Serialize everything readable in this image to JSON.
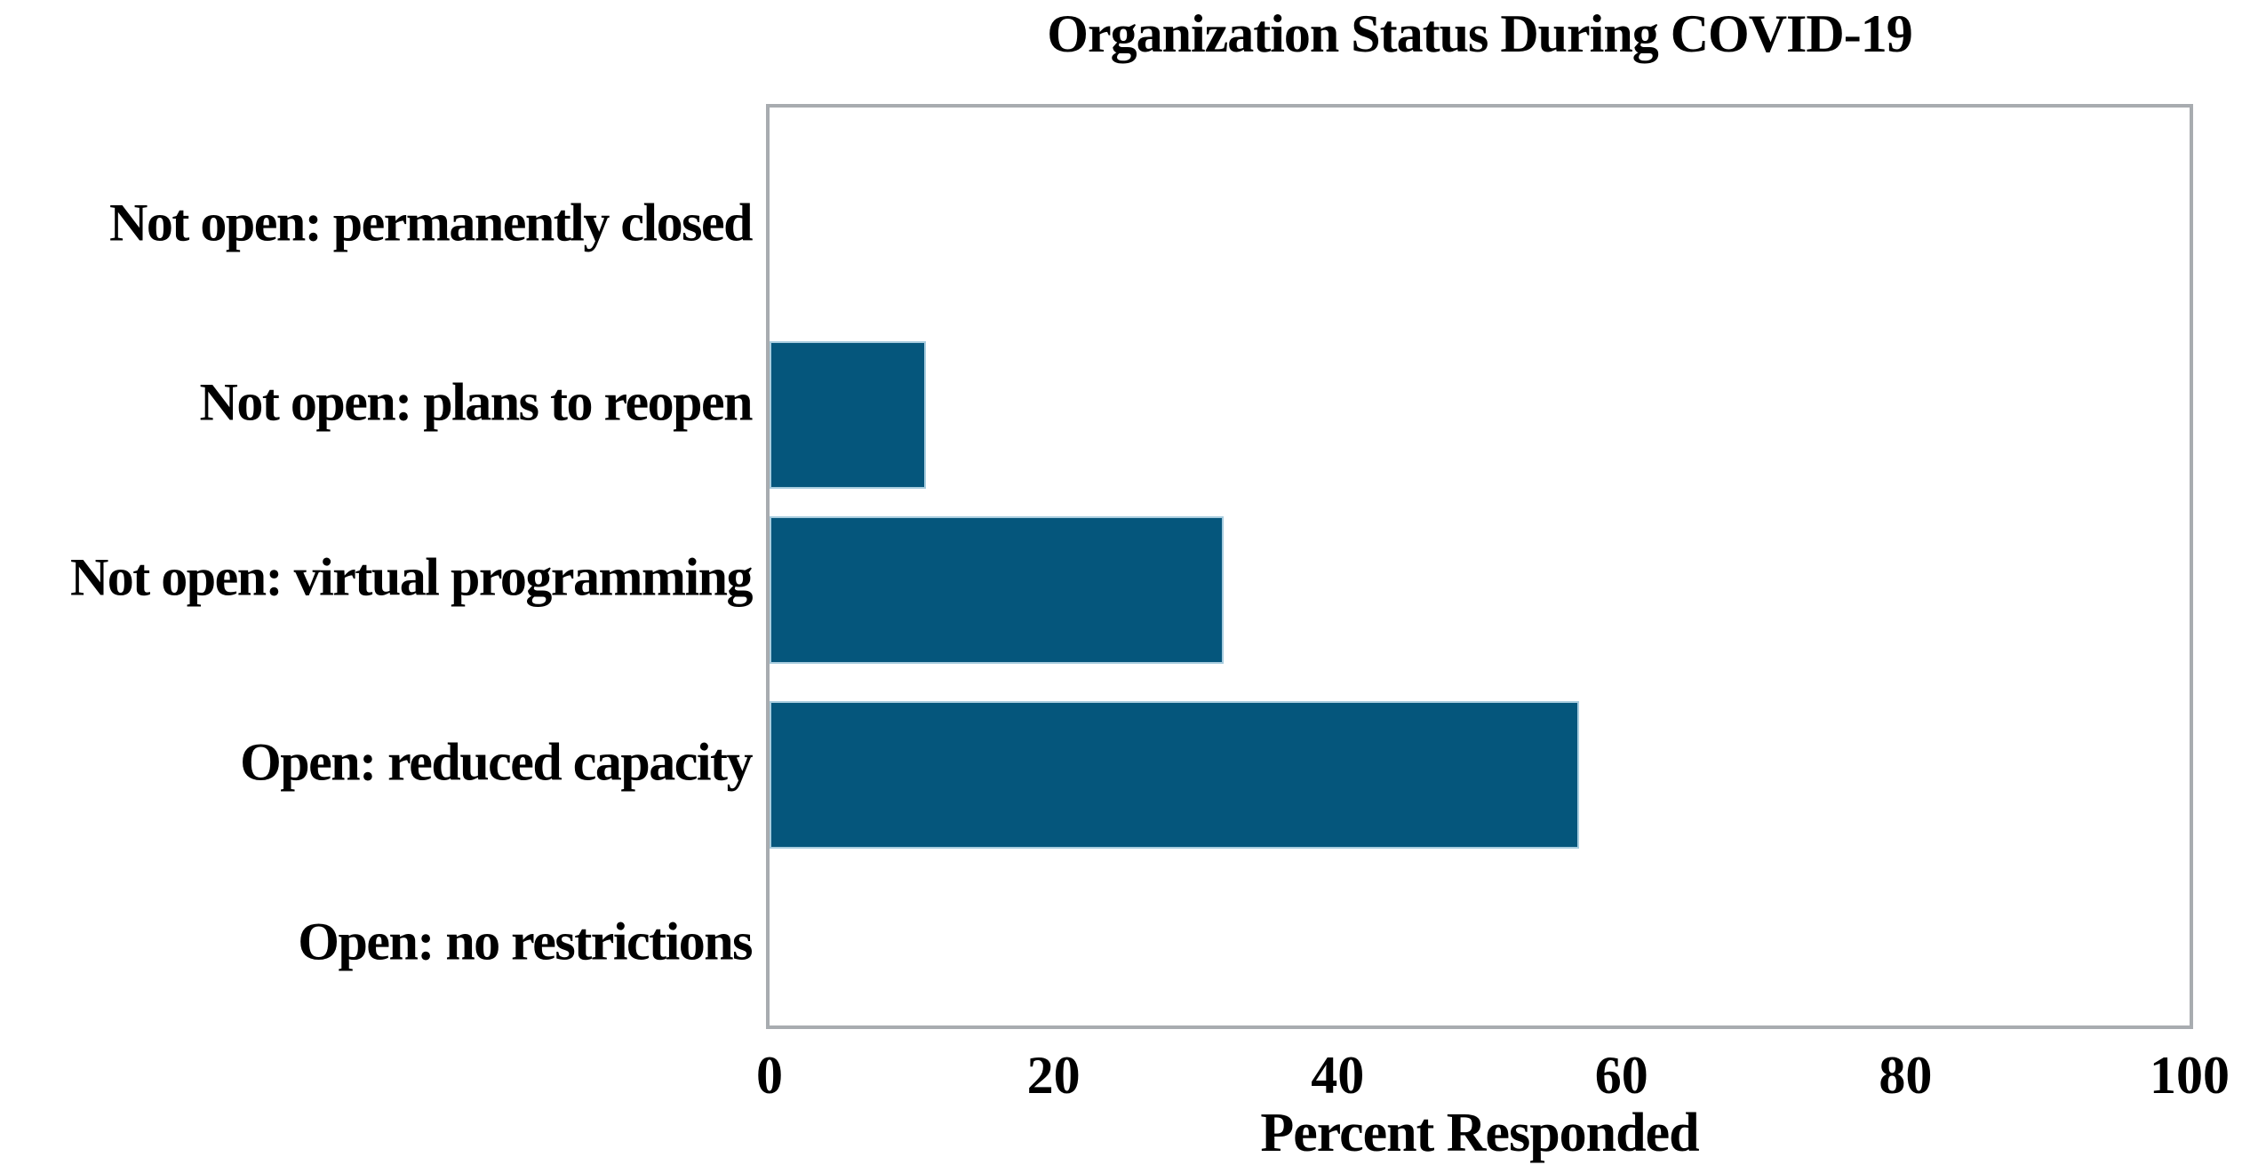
{
  "chart_data": {
    "type": "bar",
    "orientation": "horizontal",
    "title": "Organization Status During COVID-19",
    "categories": [
      "Not open: permanently closed",
      "Not open: plans to reopen",
      "Not open: virtual programming",
      "Open: reduced capacity",
      "Open: no restrictions"
    ],
    "values": [
      0,
      11,
      32,
      57,
      0
    ],
    "xlabel": "Percent Responded",
    "ylabel": "",
    "xlim": [
      0,
      100
    ],
    "xticks": [
      0,
      20,
      40,
      60,
      80,
      100
    ],
    "grid": false,
    "legend_position": "none",
    "colors": {
      "bar_fill": "#05567c",
      "bar_edge": "#a8ccde",
      "axis_border": "#a8acb0",
      "text": "#000000",
      "background": "#ffffff"
    }
  }
}
